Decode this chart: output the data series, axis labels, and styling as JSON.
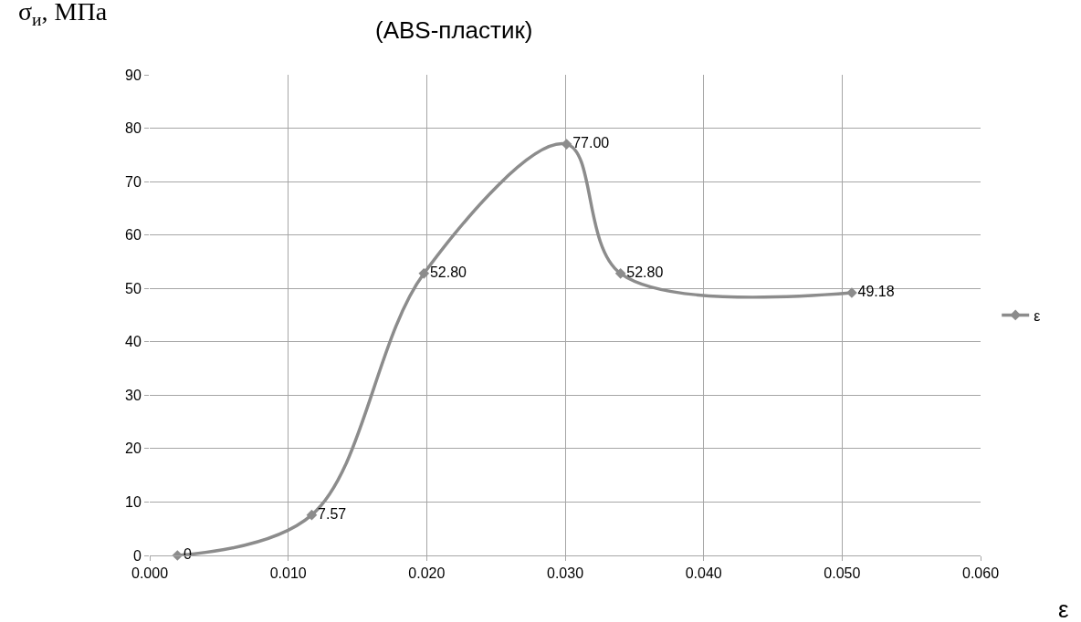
{
  "chart_data": {
    "type": "line",
    "title": "(ABS-пластик)",
    "xlabel": "ε",
    "ylabel": "σ$_{и}$, МПа",
    "x": [
      0.002,
      0.0117,
      0.0198,
      0.0301,
      0.034,
      0.0507
    ],
    "series": [
      {
        "name": "ε",
        "color": "#8c8c8c",
        "values": [
          0,
          7.57,
          52.8,
          77.0,
          52.8,
          49.18
        ],
        "value_labels": [
          "0",
          "7.57",
          "52.80",
          "77.00",
          "52.80",
          "49.18"
        ]
      }
    ],
    "xlim": [
      0,
      0.06
    ],
    "xticks": [
      {
        "value": 0,
        "label": "0.000"
      },
      {
        "value": 0.01,
        "label": "0.010"
      },
      {
        "value": 0.02,
        "label": "0.020"
      },
      {
        "value": 0.03,
        "label": "0.030"
      },
      {
        "value": 0.04,
        "label": "0.040"
      },
      {
        "value": 0.05,
        "label": "0.050"
      },
      {
        "value": 0.06,
        "label": "0.060"
      }
    ],
    "ylim": [
      0,
      90
    ],
    "yticks": [
      0,
      10,
      20,
      30,
      40,
      50,
      60,
      70,
      80,
      90
    ],
    "grid": true,
    "legend": "right",
    "marker": "diamond",
    "line_style": "solid"
  }
}
